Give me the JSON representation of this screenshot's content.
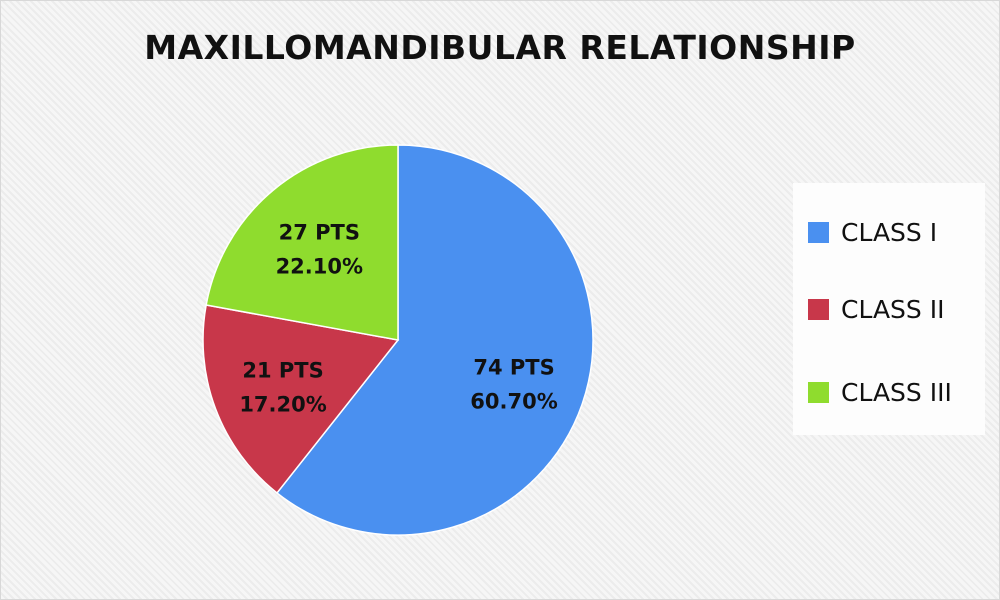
{
  "chart_data": {
    "type": "pie",
    "title": "MAXILLOMANDIBULAR RELATIONSHIP",
    "categories": [
      "CLASS I",
      "CLASS II",
      "CLASS III"
    ],
    "values": [
      74,
      21,
      27
    ],
    "data_labels": [
      {
        "count": "74 PTS",
        "percent": "60.70%"
      },
      {
        "count": "21 PTS",
        "percent": "17.20%"
      },
      {
        "count": "27 PTS",
        "percent": "22.10%"
      }
    ],
    "percentages": [
      60.7,
      17.2,
      22.1
    ],
    "colors": [
      "#4a90f0",
      "#c8374a",
      "#8fdc2e"
    ],
    "start_angle": "top, clockwise",
    "legend_position": "right"
  }
}
